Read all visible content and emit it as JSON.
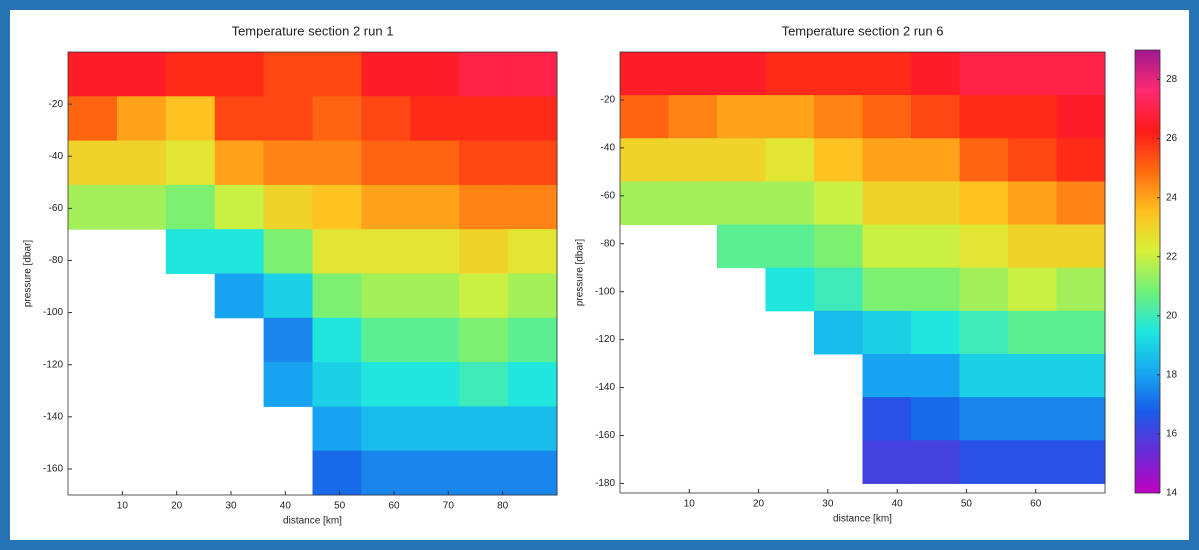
{
  "chart_data": [
    {
      "type": "heatmap",
      "title": "Temperature section 2 run 1",
      "xlabel": "distance [km]",
      "ylabel": "pressure [dbar]",
      "xlim": [
        0,
        90
      ],
      "ylim": [
        -170,
        0
      ],
      "xticks": [
        10,
        20,
        30,
        40,
        50,
        60,
        70,
        80
      ],
      "yticks": [
        -20,
        -40,
        -60,
        -80,
        -100,
        -120,
        -140,
        -160
      ],
      "xbins": [
        0,
        9,
        18,
        27,
        36,
        45,
        54,
        63,
        72,
        81,
        90
      ],
      "ybins": [
        0,
        -17,
        -34,
        -51,
        -68,
        -85,
        -102,
        -119,
        -136,
        -153,
        -170
      ],
      "z": [
        [
          26.5,
          26.5,
          26,
          26,
          25.5,
          25.5,
          26.5,
          26.5,
          27,
          27
        ],
        [
          25,
          24,
          23.5,
          25.5,
          25.5,
          25,
          25.5,
          26,
          26,
          26
        ],
        [
          23,
          23,
          22.5,
          24,
          24.5,
          24.5,
          25,
          25,
          25.5,
          25.5
        ],
        [
          21.5,
          21.5,
          21,
          22,
          23,
          23.5,
          24,
          24,
          24.5,
          24.5
        ],
        [
          null,
          null,
          19.5,
          19.5,
          21,
          22.5,
          22.5,
          22.5,
          23,
          22.5
        ],
        [
          null,
          null,
          null,
          18,
          19,
          21,
          21.5,
          21.5,
          22,
          21.5
        ],
        [
          null,
          null,
          null,
          null,
          17.5,
          19.5,
          20.5,
          20.5,
          21,
          20.5
        ],
        [
          null,
          null,
          null,
          null,
          18,
          19,
          19.5,
          19.5,
          20,
          19.5
        ],
        [
          null,
          null,
          null,
          null,
          null,
          18,
          18.5,
          18.5,
          18.5,
          18.5
        ],
        [
          null,
          null,
          null,
          null,
          null,
          17,
          17.5,
          17.5,
          17.5,
          17.5
        ]
      ]
    },
    {
      "type": "heatmap",
      "title": "Temperature section 2 run 6",
      "xlabel": "distance [km]",
      "ylabel": "pressure [dbar]",
      "xlim": [
        0,
        70
      ],
      "ylim": [
        -184,
        0
      ],
      "xticks": [
        10,
        20,
        30,
        40,
        50,
        60
      ],
      "yticks": [
        -20,
        -40,
        -60,
        -80,
        -100,
        -120,
        -140,
        -160,
        -180
      ],
      "xbins": [
        0,
        7,
        14,
        21,
        28,
        35,
        42,
        49,
        56,
        63,
        70
      ],
      "ybins": [
        0,
        -18,
        -36,
        -54,
        -72,
        -90,
        -108,
        -126,
        -144,
        -162,
        -180
      ],
      "z": [
        [
          26.5,
          26.5,
          26.5,
          26,
          26,
          26,
          26.5,
          27,
          27,
          27
        ],
        [
          25,
          24.5,
          24,
          24,
          24.5,
          25,
          25.5,
          26,
          26,
          26.5
        ],
        [
          23,
          23,
          23,
          22.5,
          23.5,
          24,
          24,
          25,
          25.5,
          26
        ],
        [
          21.5,
          21.5,
          21.5,
          21.5,
          22,
          23,
          23,
          23.5,
          24,
          24.5
        ],
        [
          null,
          null,
          20.5,
          20.5,
          21,
          22,
          22,
          22.5,
          23,
          23
        ],
        [
          null,
          null,
          null,
          19.5,
          20,
          21,
          21,
          21.5,
          22,
          21.5
        ],
        [
          null,
          null,
          null,
          null,
          18.5,
          19,
          19.5,
          20,
          20.5,
          20.5
        ],
        [
          null,
          null,
          null,
          null,
          null,
          18,
          18,
          19,
          19,
          19
        ],
        [
          null,
          null,
          null,
          null,
          null,
          16.5,
          17,
          17.5,
          17.5,
          17.5
        ],
        [
          null,
          null,
          null,
          null,
          null,
          16,
          16,
          16.5,
          16.5,
          16.5
        ]
      ]
    },
    {
      "type": "colorbar",
      "clim": [
        14,
        29
      ],
      "cticks": [
        14,
        16,
        18,
        20,
        22,
        24,
        26,
        28
      ],
      "colors": [
        "#c000c0",
        "#6a2bd6",
        "#1a5ae8",
        "#17a8f0",
        "#1ee6e0",
        "#6ff07a",
        "#d8f03a",
        "#ffc020",
        "#ff6a10",
        "#ff1a1a",
        "#ff2a70",
        "#a01890"
      ]
    }
  ]
}
